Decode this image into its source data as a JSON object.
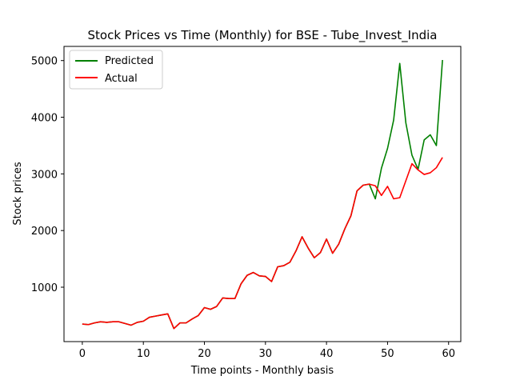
{
  "chart_data": {
    "type": "line",
    "title": "Stock Prices vs Time (Monthly) for BSE - Tube_Invest_India",
    "xlabel": "Time points - Monthly basis",
    "ylabel": "Stock prices",
    "xlim": [
      -3,
      62
    ],
    "ylim": [
      40,
      5250
    ],
    "xticks": [
      0,
      10,
      20,
      30,
      40,
      50,
      60
    ],
    "yticks": [
      1000,
      2000,
      3000,
      4000,
      5000
    ],
    "grid": false,
    "legend_position": "top-left",
    "x": [
      0,
      1,
      2,
      3,
      4,
      5,
      6,
      7,
      8,
      9,
      10,
      11,
      12,
      13,
      14,
      15,
      16,
      17,
      18,
      19,
      20,
      21,
      22,
      23,
      24,
      25,
      26,
      27,
      28,
      29,
      30,
      31,
      32,
      33,
      34,
      35,
      36,
      37,
      38,
      39,
      40,
      41,
      42,
      43,
      44,
      45,
      46,
      47,
      48,
      49,
      50,
      51,
      52,
      53,
      54,
      55,
      56,
      57,
      58,
      59
    ],
    "series": [
      {
        "name": "Predicted",
        "color": "#008000",
        "values": [
          350,
          340,
          370,
          390,
          380,
          390,
          390,
          360,
          330,
          380,
          400,
          470,
          490,
          510,
          530,
          270,
          370,
          370,
          440,
          500,
          640,
          610,
          660,
          810,
          800,
          800,
          1060,
          1210,
          1260,
          1200,
          1190,
          1100,
          1360,
          1380,
          1440,
          1640,
          1890,
          1690,
          1520,
          1610,
          1850,
          1600,
          1760,
          2030,
          2260,
          2700,
          2800,
          2820,
          2560,
          3100,
          3450,
          3950,
          4950,
          3900,
          3330,
          3080,
          3600,
          3690,
          3500,
          5010
        ]
      },
      {
        "name": "Actual",
        "color": "#ff0000",
        "values": [
          350,
          340,
          370,
          390,
          380,
          390,
          390,
          360,
          330,
          380,
          400,
          470,
          490,
          510,
          530,
          270,
          370,
          370,
          440,
          500,
          640,
          610,
          660,
          810,
          800,
          800,
          1060,
          1210,
          1260,
          1200,
          1190,
          1100,
          1360,
          1380,
          1440,
          1640,
          1890,
          1690,
          1520,
          1610,
          1850,
          1600,
          1760,
          2030,
          2260,
          2700,
          2800,
          2820,
          2790,
          2620,
          2780,
          2560,
          2580,
          2880,
          3180,
          3070,
          2990,
          3020,
          3110,
          3290
        ]
      }
    ]
  }
}
